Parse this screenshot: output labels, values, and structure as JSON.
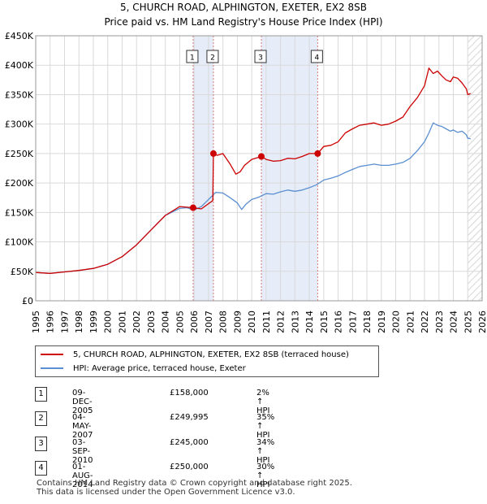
{
  "chart_data": {
    "type": "line",
    "title": "5, CHURCH ROAD, ALPHINGTON, EXETER, EX2 8SB",
    "subtitle": "Price paid vs. HM Land Registry's House Price Index (HPI)",
    "xlim": [
      1995,
      2026
    ],
    "ylim": [
      0,
      450000
    ],
    "x_ticks": [
      "1995",
      "1996",
      "1997",
      "1998",
      "1999",
      "2000",
      "2001",
      "2002",
      "2003",
      "2004",
      "2005",
      "2006",
      "2007",
      "2008",
      "2009",
      "2010",
      "2011",
      "2012",
      "2013",
      "2014",
      "2015",
      "2016",
      "2017",
      "2018",
      "2019",
      "2020",
      "2021",
      "2022",
      "2023",
      "2024",
      "2025",
      "2026"
    ],
    "y_ticks": [
      {
        "value": 0,
        "label": "£0"
      },
      {
        "value": 50000,
        "label": "£50K"
      },
      {
        "value": 100000,
        "label": "£100K"
      },
      {
        "value": 150000,
        "label": "£150K"
      },
      {
        "value": 200000,
        "label": "£200K"
      },
      {
        "value": 250000,
        "label": "£250K"
      },
      {
        "value": 300000,
        "label": "£300K"
      },
      {
        "value": 350000,
        "label": "£350K"
      },
      {
        "value": 400000,
        "label": "£400K"
      },
      {
        "value": 450000,
        "label": "£450K"
      }
    ],
    "grid": true,
    "shaded_ranges": [
      [
        2005.93,
        2007.34
      ],
      [
        2010.67,
        2014.58
      ]
    ],
    "hatched_from": 2025.0,
    "series": [
      {
        "name": "5, CHURCH ROAD, ALPHINGTON, EXETER, EX2 8SB (terraced house)",
        "color": "#cc0000",
        "x": [
          1995.0,
          1996.0,
          1997.0,
          1998.0,
          1999.0,
          2000.0,
          2001.0,
          2002.0,
          2003.0,
          2004.0,
          2005.0,
          2005.93,
          2006.5,
          2007.0,
          2007.3,
          2007.34,
          2007.6,
          2008.0,
          2008.5,
          2008.9,
          2009.2,
          2009.5,
          2010.0,
          2010.67,
          2011.0,
          2011.5,
          2012.0,
          2012.5,
          2013.0,
          2013.5,
          2014.0,
          2014.58,
          2015.0,
          2015.5,
          2016.0,
          2016.5,
          2017.0,
          2017.5,
          2018.0,
          2018.5,
          2019.0,
          2019.5,
          2020.0,
          2020.5,
          2021.0,
          2021.5,
          2022.0,
          2022.3,
          2022.6,
          2022.9,
          2023.2,
          2023.5,
          2023.8,
          2024.0,
          2024.3,
          2024.6,
          2024.9,
          2025.0,
          2025.2
        ],
        "values": [
          48000,
          46500,
          49000,
          51500,
          55000,
          62000,
          75000,
          95000,
          120000,
          145000,
          160000,
          158000,
          156000,
          165000,
          170000,
          249995,
          247000,
          250000,
          232000,
          215000,
          219000,
          230000,
          240000,
          245000,
          240000,
          237000,
          238000,
          242000,
          241000,
          245000,
          250000,
          250000,
          262000,
          264000,
          270000,
          285000,
          292000,
          298000,
          300000,
          302000,
          298000,
          300000,
          305000,
          312000,
          330000,
          345000,
          365000,
          395000,
          386000,
          390000,
          382000,
          375000,
          372000,
          380000,
          378000,
          370000,
          360000,
          350000,
          352000
        ]
      },
      {
        "name": "HPI: Average price, terraced house, Exeter",
        "color": "#5b8fd1",
        "x": [
          1995.0,
          1996.0,
          1997.0,
          1998.0,
          1999.0,
          2000.0,
          2001.0,
          2002.0,
          2003.0,
          2004.0,
          2005.0,
          2005.5,
          2006.0,
          2006.5,
          2007.0,
          2007.5,
          2008.0,
          2008.5,
          2009.0,
          2009.3,
          2009.6,
          2010.0,
          2010.5,
          2011.0,
          2011.5,
          2012.0,
          2012.5,
          2013.0,
          2013.5,
          2014.0,
          2014.5,
          2015.0,
          2015.5,
          2016.0,
          2016.5,
          2017.0,
          2017.5,
          2018.0,
          2018.5,
          2019.0,
          2019.5,
          2020.0,
          2020.5,
          2021.0,
          2021.5,
          2022.0,
          2022.3,
          2022.6,
          2022.9,
          2023.2,
          2023.5,
          2023.8,
          2024.0,
          2024.3,
          2024.6,
          2024.9,
          2025.0,
          2025.2
        ],
        "values": [
          48000,
          46500,
          49000,
          51500,
          55000,
          62000,
          75000,
          95000,
          120000,
          145000,
          157000,
          158000,
          154000,
          160000,
          172000,
          184000,
          183000,
          175000,
          166000,
          155000,
          164000,
          172000,
          176000,
          182000,
          181000,
          185000,
          188000,
          186000,
          188000,
          192000,
          197000,
          205000,
          208000,
          212000,
          218000,
          223000,
          228000,
          230000,
          232000,
          230000,
          230000,
          232000,
          235000,
          242000,
          255000,
          270000,
          285000,
          302000,
          298000,
          296000,
          292000,
          288000,
          290000,
          286000,
          288000,
          282000,
          276000,
          275000
        ]
      }
    ],
    "markers": [
      {
        "label": "1",
        "x": 2005.93,
        "price": 158000
      },
      {
        "label": "2",
        "x": 2007.34,
        "price": 249995
      },
      {
        "label": "3",
        "x": 2010.67,
        "price": 245000
      },
      {
        "label": "4",
        "x": 2014.58,
        "price": 250000
      }
    ]
  },
  "legend": {
    "property_label": "5, CHURCH ROAD, ALPHINGTON, EXETER, EX2 8SB (terraced house)",
    "hpi_label": "HPI: Average price, terraced house, Exeter"
  },
  "transactions": [
    {
      "num": "1",
      "date": "09-DEC-2005",
      "price": "£158,000",
      "hpi": "2% ↑ HPI"
    },
    {
      "num": "2",
      "date": "04-MAY-2007",
      "price": "£249,995",
      "hpi": "35% ↑ HPI"
    },
    {
      "num": "3",
      "date": "03-SEP-2010",
      "price": "£245,000",
      "hpi": "34% ↑ HPI"
    },
    {
      "num": "4",
      "date": "01-AUG-2014",
      "price": "£250,000",
      "hpi": "30% ↑ HPI"
    }
  ],
  "footer": {
    "line1": "Contains HM Land Registry data © Crown copyright and database right 2025.",
    "line2": "This data is licensed under the Open Government Licence v3.0."
  }
}
